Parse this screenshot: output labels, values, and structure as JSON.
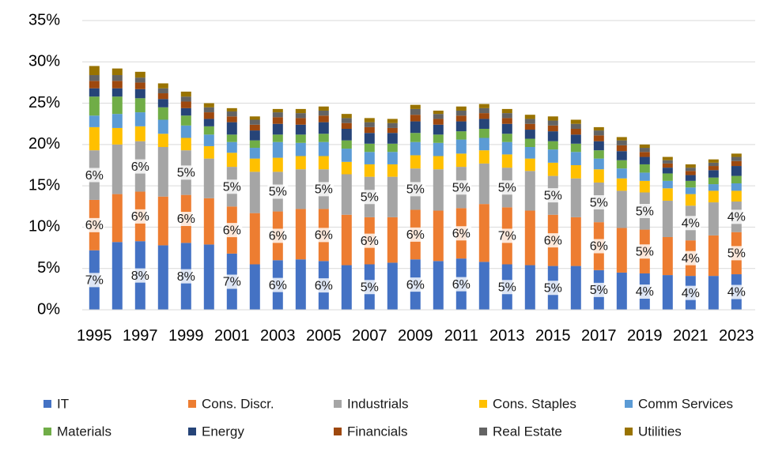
{
  "chart_data": {
    "type": "bar",
    "stacked": true,
    "title": "",
    "xlabel": "",
    "ylabel": "",
    "ylim": [
      0,
      35
    ],
    "y_ticks": [
      "0%",
      "5%",
      "10%",
      "15%",
      "20%",
      "25%",
      "30%",
      "35%"
    ],
    "y_tick_values": [
      0,
      5,
      10,
      15,
      20,
      25,
      30,
      35
    ],
    "x_tick_labels": [
      "1995",
      "1997",
      "1999",
      "2001",
      "2003",
      "2005",
      "2007",
      "2009",
      "2011",
      "2013",
      "2015",
      "2017",
      "2019",
      "2021",
      "2023"
    ],
    "grid": true,
    "legend_position": "bottom",
    "categories": [
      "1995",
      "1996",
      "1997",
      "1998",
      "1999",
      "2000",
      "2001",
      "2002",
      "2003",
      "2004",
      "2005",
      "2006",
      "2007",
      "2008",
      "2009",
      "2010",
      "2011",
      "2012",
      "2013",
      "2014",
      "2015",
      "2016",
      "2017",
      "2018",
      "2019",
      "2020",
      "2021",
      "2022",
      "2023"
    ],
    "series": [
      {
        "name": "IT",
        "color": "#4472C4",
        "values": [
          7.2,
          8.2,
          8.3,
          7.8,
          8.1,
          7.9,
          6.8,
          5.5,
          6.0,
          6.1,
          5.9,
          5.4,
          5.5,
          5.7,
          6.1,
          5.9,
          6.2,
          5.8,
          5.5,
          5.4,
          5.3,
          5.3,
          4.8,
          4.5,
          4.4,
          4.2,
          4.1,
          4.1,
          4.3
        ],
        "labels": [
          "7%",
          "",
          "8%",
          "",
          "8%",
          "",
          "7%",
          "",
          "6%",
          "",
          "6%",
          "",
          "5%",
          "",
          "6%",
          "",
          "6%",
          "",
          "5%",
          "",
          "5%",
          "",
          "5%",
          "",
          "4%",
          "",
          "4%",
          "",
          "4%"
        ]
      },
      {
        "name": "Cons. Discr.",
        "color": "#ED7D31",
        "values": [
          6.1,
          5.8,
          6.0,
          5.9,
          5.8,
          5.6,
          5.7,
          6.2,
          5.9,
          6.1,
          6.3,
          6.1,
          5.7,
          5.5,
          6.0,
          6.1,
          6.1,
          7.0,
          6.9,
          6.6,
          6.2,
          5.9,
          5.8,
          5.4,
          5.3,
          4.6,
          4.3,
          4.9,
          5.1
        ],
        "labels": [
          "6%",
          "",
          "6%",
          "",
          "6%",
          "",
          "6%",
          "",
          "6%",
          "",
          "6%",
          "",
          "6%",
          "",
          "6%",
          "",
          "6%",
          "",
          "7%",
          "",
          "6%",
          "",
          "6%",
          "",
          "5%",
          "",
          "4%",
          "",
          "5%"
        ]
      },
      {
        "name": "Industrials",
        "color": "#A5A5A5",
        "values": [
          6.0,
          6.0,
          6.1,
          6.0,
          5.4,
          4.8,
          4.8,
          5.0,
          4.8,
          4.8,
          4.8,
          4.9,
          4.9,
          4.9,
          5.0,
          5.0,
          5.0,
          4.9,
          4.8,
          4.8,
          4.7,
          4.7,
          4.8,
          4.5,
          4.5,
          4.4,
          4.2,
          4.0,
          3.7
        ],
        "labels": [
          "6%",
          "",
          "6%",
          "",
          "5%",
          "",
          "5%",
          "",
          "5%",
          "",
          "5%",
          "",
          "5%",
          "",
          "5%",
          "",
          "5%",
          "",
          "5%",
          "",
          "5%",
          "",
          "5%",
          "",
          "5%",
          "",
          "4%",
          "",
          "4%"
        ]
      },
      {
        "name": "Cons. Staples",
        "color": "#FFC000",
        "values": [
          2.8,
          2.0,
          1.8,
          1.6,
          1.5,
          1.5,
          1.7,
          1.6,
          1.7,
          1.6,
          1.6,
          1.5,
          1.5,
          1.5,
          1.6,
          1.6,
          1.6,
          1.6,
          1.6,
          1.5,
          1.6,
          1.6,
          1.6,
          1.5,
          1.4,
          1.5,
          1.4,
          1.4,
          1.3
        ]
      },
      {
        "name": "Comm Services",
        "color": "#5B9BD5",
        "values": [
          1.4,
          1.7,
          1.7,
          1.7,
          1.5,
          1.4,
          1.3,
          1.3,
          1.9,
          1.6,
          1.7,
          1.6,
          1.5,
          1.5,
          1.6,
          1.6,
          1.7,
          1.5,
          1.5,
          1.4,
          1.6,
          1.6,
          1.3,
          1.2,
          1.0,
          0.9,
          0.8,
          0.8,
          0.9
        ]
      },
      {
        "name": "Materials",
        "color": "#70AD47",
        "values": [
          2.3,
          2.1,
          1.7,
          1.5,
          1.2,
          1.0,
          0.9,
          0.9,
          0.9,
          1.0,
          1.0,
          1.0,
          1.0,
          1.0,
          1.1,
          1.0,
          1.0,
          1.1,
          1.0,
          1.0,
          1.0,
          1.0,
          1.0,
          1.0,
          1.0,
          0.9,
          0.8,
          0.8,
          0.9
        ]
      },
      {
        "name": "Energy",
        "color": "#264478",
        "values": [
          1.0,
          1.0,
          1.1,
          1.0,
          0.9,
          0.9,
          1.5,
          1.2,
          1.3,
          1.2,
          1.4,
          1.4,
          1.3,
          1.3,
          1.4,
          1.2,
          1.2,
          1.2,
          1.2,
          1.1,
          1.2,
          1.1,
          1.1,
          1.1,
          0.9,
          0.7,
          0.7,
          0.9,
          1.2
        ]
      },
      {
        "name": "Financials",
        "color": "#9E480E",
        "values": [
          0.9,
          0.9,
          0.8,
          0.7,
          0.8,
          0.8,
          0.7,
          0.7,
          0.8,
          0.8,
          0.8,
          0.7,
          0.7,
          0.6,
          0.8,
          0.7,
          0.7,
          0.7,
          0.7,
          0.7,
          0.7,
          0.7,
          0.7,
          0.7,
          0.6,
          0.5,
          0.5,
          0.5,
          0.6
        ]
      },
      {
        "name": "Real Estate",
        "color": "#636363",
        "values": [
          0.7,
          0.7,
          0.6,
          0.6,
          0.6,
          0.6,
          0.6,
          0.6,
          0.6,
          0.6,
          0.6,
          0.6,
          0.6,
          0.6,
          0.7,
          0.6,
          0.6,
          0.6,
          0.6,
          0.6,
          0.6,
          0.6,
          0.6,
          0.6,
          0.5,
          0.4,
          0.4,
          0.4,
          0.5
        ]
      },
      {
        "name": "Utilities",
        "color": "#997300",
        "values": [
          1.1,
          0.8,
          0.7,
          0.6,
          0.6,
          0.5,
          0.4,
          0.4,
          0.4,
          0.5,
          0.5,
          0.5,
          0.5,
          0.5,
          0.5,
          0.4,
          0.5,
          0.5,
          0.5,
          0.5,
          0.5,
          0.5,
          0.4,
          0.4,
          0.4,
          0.4,
          0.4,
          0.4,
          0.4
        ]
      }
    ]
  }
}
